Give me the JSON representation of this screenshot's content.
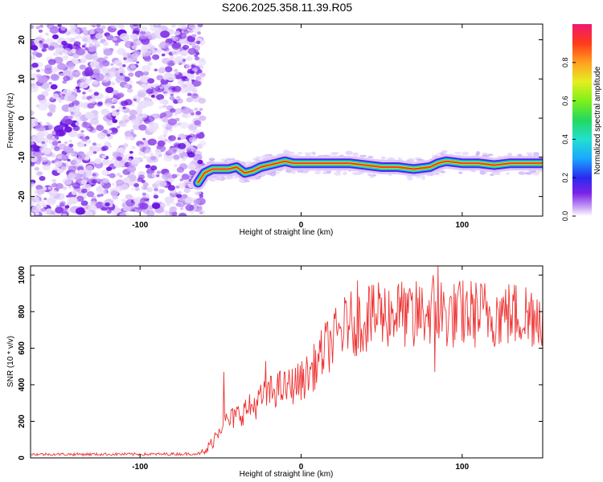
{
  "title": "S206.2025.358.11.39.R05",
  "colors": {
    "snr_line": "#ee3333",
    "noise_purple": "#7b22e8",
    "axis": "#000000"
  },
  "chart_data": [
    {
      "type": "heatmap",
      "title": "S206.2025.358.11.39.R05",
      "xlabel": "Height of straight line (km)",
      "ylabel": "Frequency (Hz)",
      "xlim": [
        -168,
        150
      ],
      "ylim": [
        -25,
        24
      ],
      "xticks": [
        -100,
        0,
        100
      ],
      "xtick_labels": [
        "-100",
        "0",
        "100"
      ],
      "yticks": [
        -20,
        -10,
        0,
        10,
        20
      ],
      "ytick_labels": [
        "-20",
        "-10",
        "0",
        "10",
        "20"
      ],
      "noise_region_x": [
        -168,
        -64
      ],
      "signal_track": {
        "x": [
          -64,
          -60,
          -55,
          -50,
          -45,
          -40,
          -35,
          -30,
          -25,
          -20,
          -15,
          -10,
          -5,
          0,
          10,
          20,
          30,
          40,
          50,
          60,
          70,
          80,
          85,
          90,
          100,
          110,
          120,
          130,
          140,
          150
        ],
        "freq": [
          -16.5,
          -14,
          -13,
          -13,
          -13,
          -12.5,
          -14,
          -13.5,
          -12.5,
          -12,
          -11.5,
          -11,
          -11.5,
          -11.5,
          -11.5,
          -11.5,
          -11.5,
          -12,
          -12.5,
          -12.5,
          -13,
          -12.5,
          -11.5,
          -11,
          -11.5,
          -11.5,
          -12,
          -11.5,
          -11.5,
          -11.5
        ]
      },
      "colorbar": {
        "label": "Normalized spectral amplitude",
        "range": [
          0,
          1
        ],
        "ticks": [
          0.0,
          0.2,
          0.4,
          0.6,
          0.8
        ],
        "tick_labels": [
          "0.0",
          "0.2",
          "0.4",
          "0.6",
          "0.8"
        ]
      }
    },
    {
      "type": "line",
      "xlabel": "Height of straight line (km)",
      "ylabel": "SNR (10 * v/v)",
      "xlim": [
        -168,
        150
      ],
      "ylim": [
        0,
        1050
      ],
      "xticks": [
        -100,
        0,
        100
      ],
      "xtick_labels": [
        "-100",
        "0",
        "100"
      ],
      "yticks": [
        0,
        200,
        400,
        600,
        800,
        1000
      ],
      "ytick_labels": [
        "0",
        "200",
        "400",
        "600",
        "800",
        "1000"
      ],
      "series": [
        {
          "name": "SNR",
          "x": [
            -168,
            -150,
            -130,
            -110,
            -90,
            -70,
            -60,
            -55,
            -50,
            -45,
            -40,
            -35,
            -30,
            -25,
            -20,
            -15,
            -10,
            -5,
            0,
            5,
            10,
            15,
            20,
            25,
            30,
            35,
            40,
            45,
            50,
            55,
            60,
            65,
            70,
            75,
            80,
            85,
            90,
            95,
            100,
            110,
            120,
            130,
            140,
            150
          ],
          "y": [
            20,
            20,
            20,
            20,
            20,
            22,
            25,
            90,
            180,
            200,
            230,
            260,
            280,
            320,
            350,
            380,
            380,
            400,
            420,
            460,
            520,
            600,
            640,
            700,
            730,
            740,
            760,
            760,
            780,
            790,
            790,
            790,
            780,
            790,
            800,
            790,
            780,
            780,
            790,
            790,
            790,
            780,
            790,
            800
          ],
          "spikes": [
            [
              -48,
              470
            ],
            [
              -22,
              530
            ],
            [
              30,
              700
            ],
            [
              35,
              970
            ],
            [
              42,
              940
            ],
            [
              48,
              960
            ],
            [
              60,
              930
            ],
            [
              66,
              900
            ],
            [
              70,
              610
            ],
            [
              82,
              1000
            ],
            [
              83,
              470
            ],
            [
              85,
              1050
            ],
            [
              87,
              960
            ],
            [
              100,
              640
            ],
            [
              128,
              840
            ],
            [
              141,
              650
            ]
          ]
        }
      ]
    }
  ]
}
